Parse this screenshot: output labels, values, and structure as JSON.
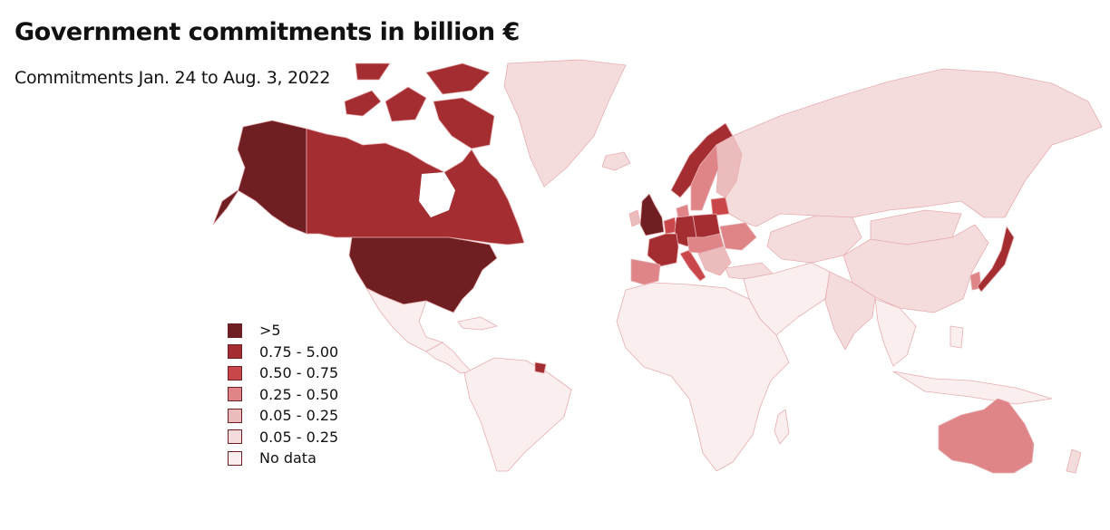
{
  "title": "Government commitments in billion €",
  "subtitle": "Commitments Jan. 24 to Aug. 3, 2022",
  "legend": [
    {
      "label": ">5",
      "color": "#6f1e21"
    },
    {
      "label": "0.75 - 5.00",
      "color": "#a32d31"
    },
    {
      "label": "0.50 - 0.75",
      "color": "#c9474b"
    },
    {
      "label": "0.25 - 0.50",
      "color": "#df8587"
    },
    {
      "label": "0.05 - 0.25",
      "color": "#ecbcbd"
    },
    {
      "label": "0.05 - 0.25",
      "color": "#f5dcdc"
    },
    {
      "label": "No data",
      "color": "#fbeeee"
    }
  ],
  "regions": [
    {
      "name": "Alaska",
      "class": ">5",
      "color": "#6f1e21"
    },
    {
      "name": "Canada",
      "class": "0.75 - 5.00",
      "color": "#a32d31"
    },
    {
      "name": "United States",
      "class": ">5",
      "color": "#6f1e21"
    },
    {
      "name": "Greenland",
      "class": "0.05 - 0.25",
      "color": "#f5dcdc"
    },
    {
      "name": "Mexico",
      "class": "No data",
      "color": "#fbeeee"
    },
    {
      "name": "Central America",
      "class": "No data",
      "color": "#fbeeee"
    },
    {
      "name": "South America",
      "class": "No data",
      "color": "#fbeeee"
    },
    {
      "name": "French Guiana",
      "class": "0.75 - 5.00",
      "color": "#a32d31"
    },
    {
      "name": "Iceland",
      "class": "0.05 - 0.25",
      "color": "#f5dcdc"
    },
    {
      "name": "United Kingdom",
      "class": ">5",
      "color": "#6f1e21"
    },
    {
      "name": "Ireland",
      "class": "0.05 - 0.25",
      "color": "#ecbcbd"
    },
    {
      "name": "Norway",
      "class": "0.75 - 5.00",
      "color": "#a32d31"
    },
    {
      "name": "Sweden",
      "class": "0.25 - 0.50",
      "color": "#df8587"
    },
    {
      "name": "Finland",
      "class": "0.05 - 0.25",
      "color": "#ecbcbd"
    },
    {
      "name": "Baltic states",
      "class": "0.50 - 0.75",
      "color": "#c9474b"
    },
    {
      "name": "Denmark",
      "class": "0.25 - 0.50",
      "color": "#df8587"
    },
    {
      "name": "Netherlands",
      "class": "0.50 - 0.75",
      "color": "#c9474b"
    },
    {
      "name": "Germany",
      "class": "0.75 - 5.00",
      "color": "#a32d31"
    },
    {
      "name": "Poland",
      "class": "0.75 - 5.00",
      "color": "#a32d31"
    },
    {
      "name": "France",
      "class": "0.75 - 5.00",
      "color": "#a32d31"
    },
    {
      "name": "Spain & Portugal",
      "class": "0.25 - 0.50",
      "color": "#df8587"
    },
    {
      "name": "Italy",
      "class": "0.50 - 0.75",
      "color": "#c9474b"
    },
    {
      "name": "Central Europe",
      "class": "0.25 - 0.50",
      "color": "#df8587"
    },
    {
      "name": "Balkans",
      "class": "0.05 - 0.25",
      "color": "#ecbcbd"
    },
    {
      "name": "Ukraine",
      "class": "0.25 - 0.50",
      "color": "#df8587"
    },
    {
      "name": "Turkey",
      "class": "0.05 - 0.25",
      "color": "#f5dcdc"
    },
    {
      "name": "Russia",
      "class": "0.05 - 0.25",
      "color": "#f5dcdc"
    },
    {
      "name": "Kazakhstan & Central Asia",
      "class": "0.05 - 0.25",
      "color": "#f5dcdc"
    },
    {
      "name": "Middle East",
      "class": "No data",
      "color": "#fbeeee"
    },
    {
      "name": "Africa",
      "class": "No data",
      "color": "#fbeeee"
    },
    {
      "name": "India",
      "class": "0.05 - 0.25",
      "color": "#f5dcdc"
    },
    {
      "name": "China",
      "class": "0.05 - 0.25",
      "color": "#f5dcdc"
    },
    {
      "name": "Mongolia",
      "class": "0.05 - 0.25",
      "color": "#f5dcdc"
    },
    {
      "name": "South Korea",
      "class": "0.25 - 0.50",
      "color": "#df8587"
    },
    {
      "name": "Japan",
      "class": "0.75 - 5.00",
      "color": "#a32d31"
    },
    {
      "name": "Southeast Asia",
      "class": "No data",
      "color": "#fbeeee"
    },
    {
      "name": "Indonesia",
      "class": "No data",
      "color": "#fbeeee"
    },
    {
      "name": "Australia",
      "class": "0.25 - 0.50",
      "color": "#df8587"
    },
    {
      "name": "New Zealand",
      "class": "0.05 - 0.25",
      "color": "#f5dcdc"
    }
  ]
}
